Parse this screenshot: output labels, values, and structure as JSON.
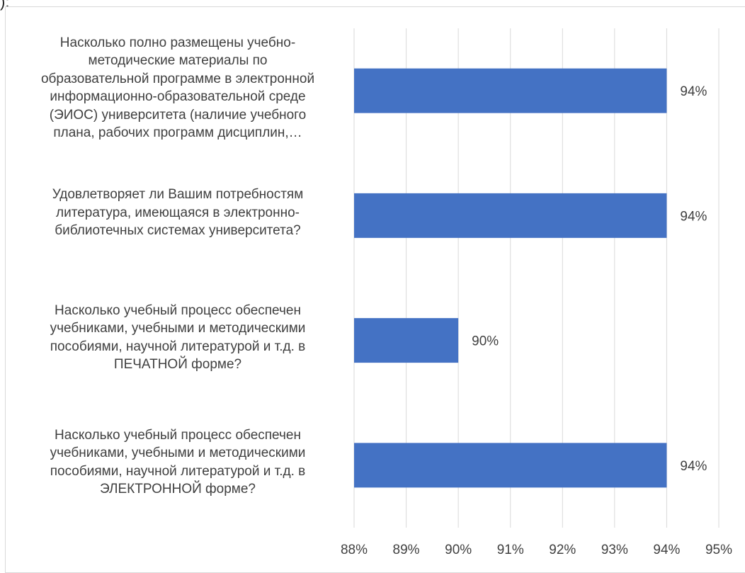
{
  "page": {
    "stray_text": "):"
  },
  "chart_data": {
    "type": "bar",
    "orientation": "horizontal",
    "categories": [
      "Насколько полно размещены учебно-методические материалы по образовательной программе в электронной информационно-образовательной среде (ЭИОС) университета (наличие учебного плана, рабочих программ дисциплин,…",
      "Удовлетворяет ли Вашим потребностям литература, имеющаяся в электронно-библиотечных системах университета?",
      "Насколько учебный процесс обеспечен учебниками, учебными и методическими пособиями, научной литературой и т.д. в ПЕЧАТНОЙ форме?",
      "Насколько учебный процесс обеспечен учебниками, учебными и методическими пособиями, научной литературой и т.д. в ЭЛЕКТРОННОЙ форме?"
    ],
    "category_lines": [
      [
        "Насколько полно размещены учебно-",
        "методические материалы по",
        "образовательной программе в электронной",
        "информационно-образовательной среде",
        "(ЭИОС) университета (наличие учебного",
        "плана, рабочих программ дисциплин,…"
      ],
      [
        "Удовлетворяет ли Вашим потребностям",
        "литература, имеющаяся в электронно-",
        "библиотечных системах университета?"
      ],
      [
        "Насколько учебный процесс обеспечен",
        "учебниками, учебными и методическими",
        "пособиями, научной литературой и т.д. в",
        "ПЕЧАТНОЙ форме?"
      ],
      [
        "Насколько учебный процесс обеспечен",
        "учебниками, учебными и методическими",
        "пособиями, научной литературой и т.д. в",
        "ЭЛЕКТРОННОЙ форме?"
      ]
    ],
    "values": [
      94,
      94,
      90,
      94
    ],
    "data_labels": [
      "94%",
      "94%",
      "90%",
      "94%"
    ],
    "xlim": [
      88,
      95
    ],
    "xticks": [
      88,
      89,
      90,
      91,
      92,
      93,
      94,
      95
    ],
    "xtick_labels": [
      "88%",
      "89%",
      "90%",
      "91%",
      "92%",
      "93%",
      "94%",
      "95%"
    ],
    "bar_color": "#4472c4",
    "grid": true,
    "title": "",
    "xlabel": "",
    "ylabel": ""
  }
}
